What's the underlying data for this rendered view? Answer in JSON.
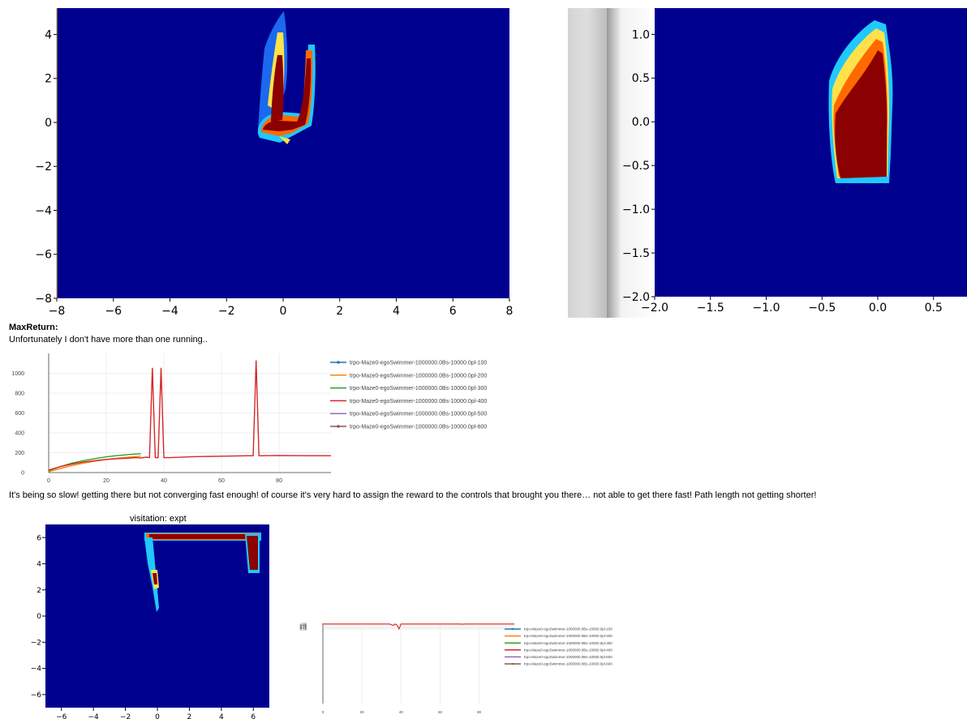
{
  "text": {
    "max_return_label": "MaxReturn:",
    "note_one_running": "Unfortunately I don't have more than one running..",
    "note_slow": "It's being so slow! getting there but not converging fast enough! of course it's very hard to assign the reward to the controls that brought you there… not able to get there fast! Path length not getting shorter!",
    "visitation_title": "visitation: expt"
  },
  "colors": {
    "jet_background": "#00008f",
    "jet_hot": "#8b0000",
    "series": [
      "#1f77b4",
      "#ff7f0e",
      "#2ca02c",
      "#d62728",
      "#9467bd",
      "#8c564b"
    ]
  },
  "chart_data": [
    {
      "type": "heatmap",
      "colormap": "jet",
      "xlim": [
        -8,
        8
      ],
      "ylim": [
        -8,
        5.2
      ],
      "x_ticks": [
        "−8",
        "−6",
        "−4",
        "−2",
        "0",
        "2",
        "4",
        "6",
        "8"
      ],
      "y_ticks": [
        "4",
        "2",
        "0",
        "−2",
        "−4",
        "−6",
        "−8"
      ]
    },
    {
      "type": "heatmap",
      "colormap": "jet",
      "xlim": [
        -2.0,
        0.8
      ],
      "ylim": [
        -2.0,
        1.3
      ],
      "x_ticks": [
        "−2.0",
        "−1.5",
        "−1.0",
        "−0.5",
        "0.0",
        "0.5"
      ],
      "y_ticks": [
        "1.0",
        "0.5",
        "0.0",
        "−0.5",
        "−1.0",
        "−1.5",
        "−2.0"
      ]
    },
    {
      "type": "line",
      "xlim": [
        0,
        98
      ],
      "ylim": [
        0,
        1200
      ],
      "x_ticks": [
        "0",
        "20",
        "40",
        "60",
        "80"
      ],
      "y_ticks": [
        "0",
        "200",
        "400",
        "600",
        "800",
        "1000"
      ],
      "legend_position": "right",
      "series": [
        {
          "name": "trpo-Maze0-egoSwimmer-1000000.0Bs-10000.0pl-100",
          "x": [],
          "y": []
        },
        {
          "name": "trpo-Maze0-egoSwimmer-1000000.0Bs-10000.0pl-200",
          "x": [
            0,
            4,
            8,
            12,
            16,
            20,
            24,
            28,
            32
          ],
          "y": [
            10,
            40,
            70,
            95,
            115,
            132,
            145,
            156,
            165
          ]
        },
        {
          "name": "trpo-Maze0-egoSwimmer-1000000.0Bs-10000.0pl-300",
          "x": [
            0,
            4,
            8,
            12,
            16,
            20,
            24,
            28,
            32
          ],
          "y": [
            20,
            60,
            95,
            120,
            140,
            158,
            172,
            182,
            190
          ]
        },
        {
          "name": "trpo-Maze0-egoSwimmer-1000000.0Bs-10000.0pl-400",
          "x": [
            0,
            4,
            8,
            12,
            16,
            20,
            24,
            28,
            30,
            32,
            34,
            35,
            36,
            37,
            38,
            39,
            40,
            41,
            42,
            50,
            60,
            70,
            71,
            72,
            73,
            74,
            80,
            90,
            98
          ],
          "y": [
            25,
            60,
            85,
            105,
            120,
            132,
            140,
            145,
            150,
            148,
            155,
            150,
            1055,
            150,
            150,
            1055,
            150,
            150,
            150,
            160,
            165,
            170,
            170,
            1130,
            170,
            170,
            172,
            170,
            170
          ]
        },
        {
          "name": "trpo-Maze0-egoSwimmer-1000000.0Bs-10000.0pl-500",
          "x": [],
          "y": []
        },
        {
          "name": "trpo-Maze0-egoSwimmer-1000000.0Bs-10000.0pl-600",
          "x": [],
          "y": []
        }
      ]
    },
    {
      "type": "heatmap",
      "colormap": "jet",
      "title": "visitation: expt",
      "xlim": [
        -7,
        7
      ],
      "ylim": [
        -7,
        7
      ],
      "x_ticks": [
        "−6",
        "−4",
        "−2",
        "0",
        "2",
        "4",
        "6"
      ],
      "y_ticks": [
        "6",
        "4",
        "2",
        "0",
        "−2",
        "−4",
        "−6"
      ]
    },
    {
      "type": "line",
      "xlim": [
        0,
        98
      ],
      "ylim": [
        3.59,
        10.05
      ],
      "x_ticks": [
        "0",
        "20",
        "40",
        "60",
        "80"
      ],
      "y_ticks": [
        "10k",
        "9.9k",
        "9.8k",
        "9.7k",
        "9.6k"
      ],
      "legend_position": "right",
      "series": [
        {
          "name": "trpo-Maze0-egoSwimmer-1000000.0Bs-10000.0pl-100",
          "x": [],
          "y": []
        },
        {
          "name": "trpo-Maze0-egoSwimmer-1000000.0Bs-10000.0pl-200",
          "x": [],
          "y": []
        },
        {
          "name": "trpo-Maze0-egoSwimmer-1000000.0Bs-10000.0pl-300",
          "x": [],
          "y": []
        },
        {
          "name": "trpo-Maze0-egoSwimmer-1000000.0Bs-10000.0pl-400",
          "x": [
            0,
            10,
            20,
            30,
            34,
            35,
            36,
            37,
            38,
            39,
            40,
            41,
            50,
            60,
            70,
            71,
            72,
            73,
            80,
            90,
            98
          ],
          "y": [
            10.0,
            10.0,
            10.0,
            10.0,
            10.0,
            9.95,
            9.88,
            10.0,
            9.9,
            9.6,
            10.0,
            10.0,
            10.0,
            10.0,
            10.0,
            9.98,
            9.99,
            10.0,
            10.0,
            10.0,
            10.0
          ]
        },
        {
          "name": "trpo-Maze0-egoSwimmer-1000000.0Bs-10000.0pl-500",
          "x": [],
          "y": []
        },
        {
          "name": "trpo-Maze0-egoSwimmer-1000000.0Bs-10000.0pl-600",
          "x": [],
          "y": []
        }
      ]
    }
  ]
}
